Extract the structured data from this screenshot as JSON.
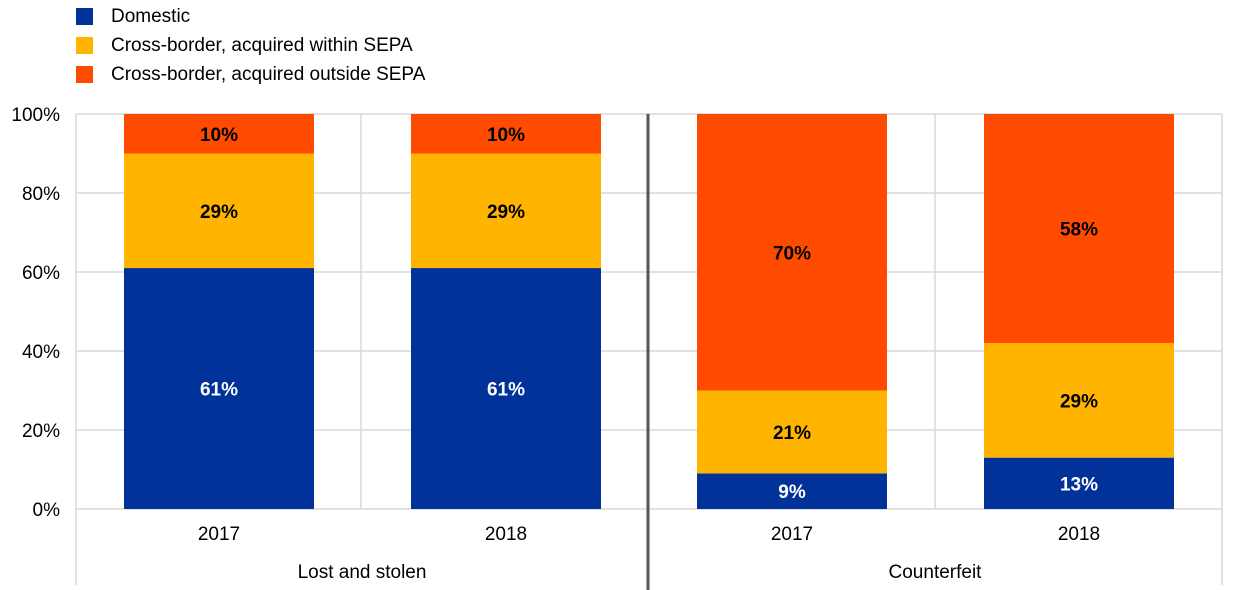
{
  "chart_data": {
    "type": "bar",
    "stacked": true,
    "title": "",
    "xlabel": "",
    "ylabel": "",
    "ylim": [
      0,
      100
    ],
    "yticks": [
      "0%",
      "20%",
      "40%",
      "60%",
      "80%",
      "100%"
    ],
    "groups": [
      {
        "label": "Lost and stolen",
        "categories": [
          "2017",
          "2018"
        ]
      },
      {
        "label": "Counterfeit",
        "categories": [
          "2017",
          "2018"
        ]
      }
    ],
    "categories": [
      "2017",
      "2018",
      "2017",
      "2018"
    ],
    "series": [
      {
        "name": "Domestic",
        "color": "#003299",
        "values": [
          61,
          61,
          9,
          13
        ],
        "labels": [
          "61%",
          "61%",
          "9%",
          "13%"
        ],
        "label_color": "#ffffff"
      },
      {
        "name": "Cross-border, acquired within SEPA",
        "color": "#FFB400",
        "values": [
          29,
          29,
          21,
          29
        ],
        "labels": [
          "29%",
          "29%",
          "21%",
          "29%"
        ],
        "label_color": "#000000"
      },
      {
        "name": "Cross-border, acquired outside SEPA",
        "color": "#FF4B00",
        "values": [
          10,
          10,
          70,
          58
        ],
        "labels": [
          "10%",
          "10%",
          "70%",
          "58%"
        ],
        "label_color": "#000000"
      }
    ],
    "legend_position": "top-left",
    "grid": true
  }
}
